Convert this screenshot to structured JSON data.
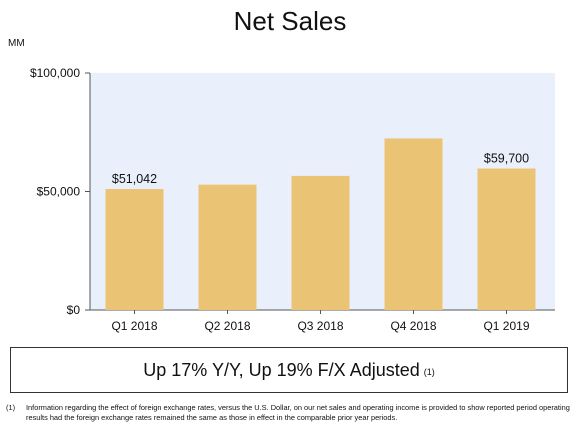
{
  "chart_data": {
    "type": "bar",
    "title": "Net Sales",
    "unit_label": "MM",
    "categories": [
      "Q1 2018",
      "Q2 2018",
      "Q3 2018",
      "Q4 2018",
      "Q1 2019"
    ],
    "values": [
      51042,
      52886,
      56576,
      72383,
      59700
    ],
    "data_labels": [
      "$51,042",
      "",
      "",
      "",
      "$59,700"
    ],
    "y_ticks": [
      {
        "value": 0,
        "label": "$0"
      },
      {
        "value": 50000,
        "label": "$50,000"
      },
      {
        "value": 100000,
        "label": "$100,000"
      }
    ],
    "ylim": [
      0,
      100000
    ],
    "bar_color": "#ebc374",
    "plot_background": "#e9f0fb",
    "grid": false
  },
  "callout": {
    "text": "Up 17% Y/Y, Up 19% F/X Adjusted",
    "footnote_ref": "(1)"
  },
  "footnote": {
    "number": "(1)",
    "text": "Information regarding the effect of foreign exchange rates, versus the U.S. Dollar, on our net sales and operating income is provided to show reported period operating results had the foreign exchange rates remained the same as those in effect in the comparable prior year periods."
  }
}
